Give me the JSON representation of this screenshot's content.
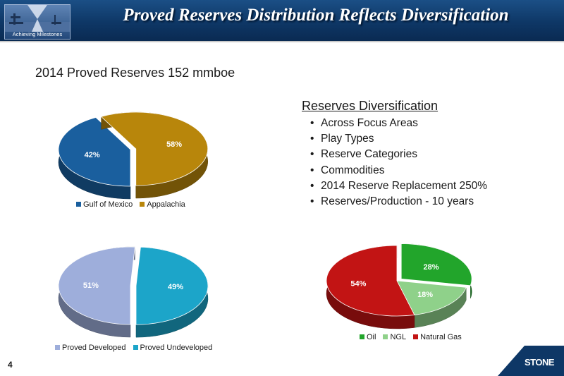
{
  "header": {
    "title": "Proved Reserves Distribution Reflects Diversification",
    "logo_tagline": "Achieving Milestones"
  },
  "subtitle": "2014 Proved Reserves 152 mmboe",
  "bullets": {
    "title": "Reserves Diversification",
    "items": [
      "Across Focus Areas",
      "Play Types",
      "Reserve Categories",
      "Commodities",
      "2014 Reserve Replacement 250%",
      "Reserves/Production - 10 years"
    ]
  },
  "page_number": "4",
  "brand": "STONE",
  "chart_data": [
    {
      "type": "pie",
      "title": "",
      "categories": [
        "Gulf of Mexico",
        "Appalachia"
      ],
      "values": [
        42,
        58
      ],
      "labels": [
        "42%",
        "58%"
      ],
      "colors": [
        "#1a5f9e",
        "#b8860b"
      ],
      "legend": "bottom",
      "exploded": [
        false,
        true
      ]
    },
    {
      "type": "pie",
      "title": "",
      "categories": [
        "Proved Developed",
        "Proved Undeveloped"
      ],
      "values": [
        51,
        49
      ],
      "labels": [
        "51%",
        "49%"
      ],
      "colors": [
        "#9eaedb",
        "#1ca5c9"
      ],
      "legend": "bottom",
      "exploded": [
        false,
        true
      ]
    },
    {
      "type": "pie",
      "title": "",
      "categories": [
        "Oil",
        "NGL",
        "Natural Gas"
      ],
      "values": [
        28,
        18,
        54
      ],
      "labels": [
        "28%",
        "18%",
        "54%"
      ],
      "colors": [
        "#22a52b",
        "#8fd18a",
        "#c21414"
      ],
      "legend": "bottom",
      "exploded": [
        true,
        false,
        false
      ]
    }
  ]
}
